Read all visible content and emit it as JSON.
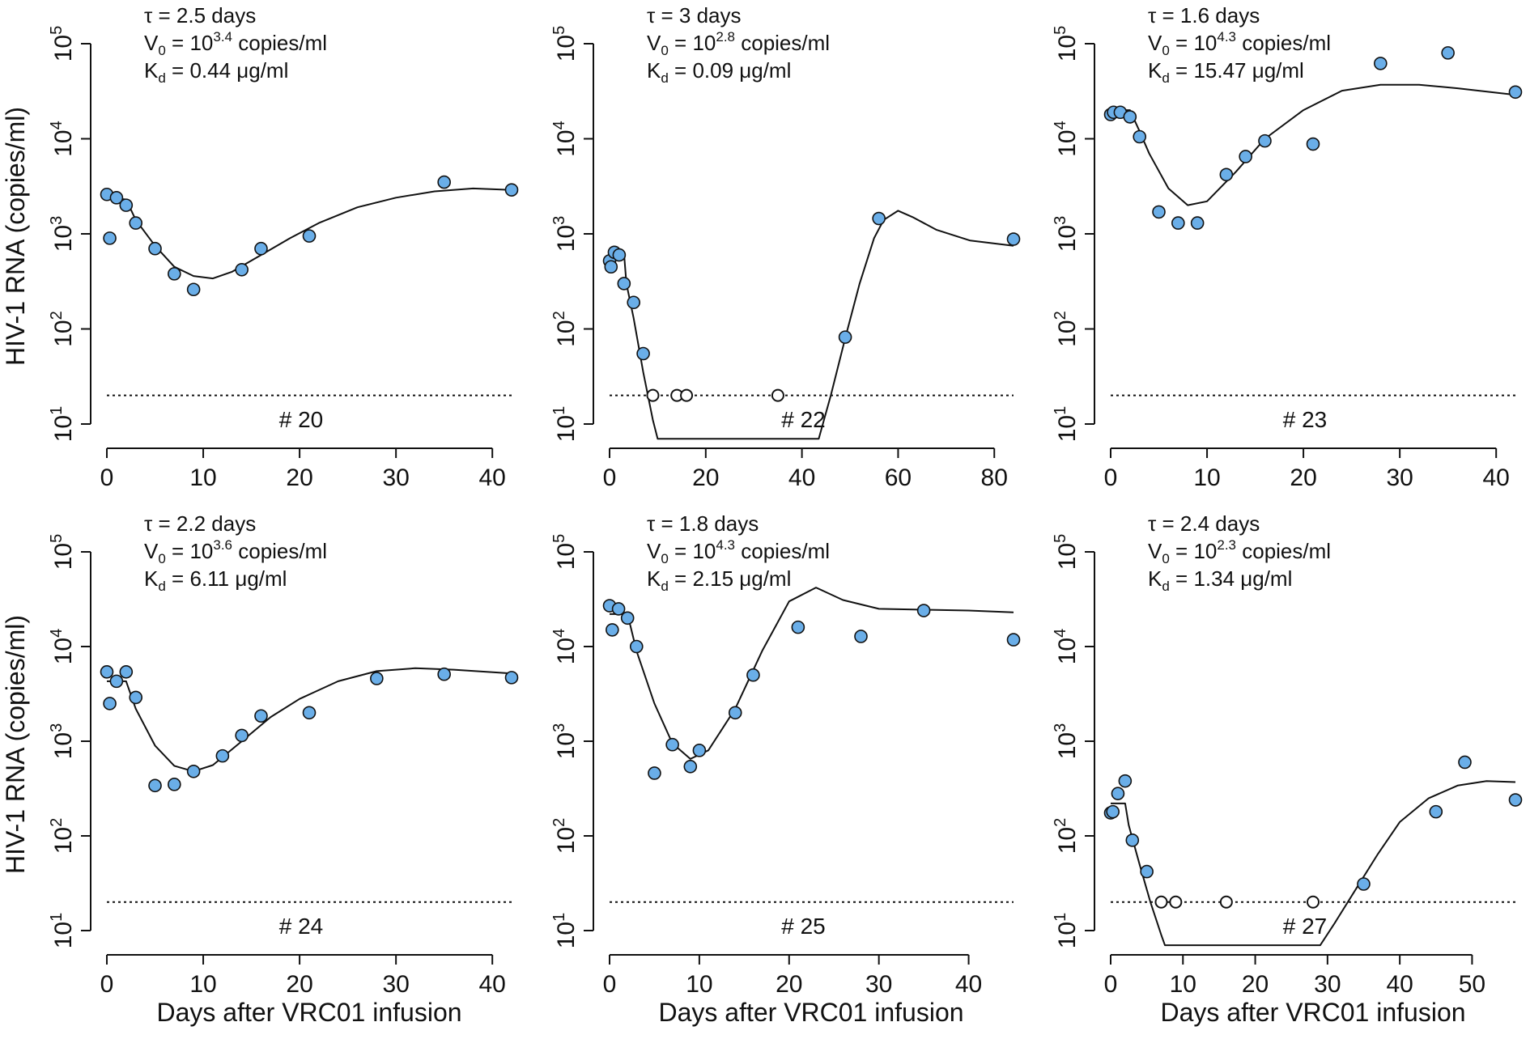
{
  "figure": {
    "y_axis_label": "HIV-1 RNA (copies/ml)",
    "x_axis_label": "Days after VRC01 infusion"
  },
  "style": {
    "point_fill": "#6aaee8",
    "point_stroke": "#111111",
    "open_point_fill": "#ffffff",
    "curve_color": "#111111"
  },
  "chart_data": [
    {
      "type": "scatter",
      "subject": "# 20",
      "params": {
        "tau": "τ = 2.5 days",
        "v0_prefix": "V",
        "v0_sub": "0",
        "v0_mid": " = 10",
        "v0_exp": "3.4",
        "v0_unit": " copies/ml",
        "kd_prefix": "K",
        "kd_sub": "d",
        "kd_rest": " = 0.44 μg/ml"
      },
      "xlim": [
        0,
        42
      ],
      "xticks": [
        0,
        10,
        20,
        30,
        40
      ],
      "ylog_range": [
        1,
        5
      ],
      "yticks": [
        "10^1",
        "10^2",
        "10^3",
        "10^4",
        "10^5"
      ],
      "detection_limit": 20,
      "points": [
        [
          0,
          2600
        ],
        [
          0.3,
          900
        ],
        [
          1,
          2400
        ],
        [
          2,
          2000
        ],
        [
          3,
          1300
        ],
        [
          5,
          700
        ],
        [
          7,
          380
        ],
        [
          9,
          260
        ],
        [
          14,
          420
        ],
        [
          16,
          700
        ],
        [
          21,
          950
        ],
        [
          35,
          3500
        ],
        [
          42,
          2900
        ]
      ],
      "censored_points": [],
      "curve": [
        [
          0,
          2400
        ],
        [
          2,
          2300
        ],
        [
          3,
          1400
        ],
        [
          5,
          750
        ],
        [
          7,
          450
        ],
        [
          9,
          360
        ],
        [
          11,
          340
        ],
        [
          13,
          400
        ],
        [
          16,
          600
        ],
        [
          19,
          900
        ],
        [
          22,
          1300
        ],
        [
          26,
          1900
        ],
        [
          30,
          2400
        ],
        [
          34,
          2800
        ],
        [
          38,
          3000
        ],
        [
          42,
          2900
        ]
      ]
    },
    {
      "type": "scatter",
      "subject": "# 22",
      "params": {
        "tau": "τ = 3 days",
        "v0_prefix": "V",
        "v0_sub": "0",
        "v0_mid": " = 10",
        "v0_exp": "2.8",
        "v0_unit": " copies/ml",
        "kd_prefix": "K",
        "kd_sub": "d",
        "kd_rest": " = 0.09 μg/ml"
      },
      "xlim": [
        0,
        84
      ],
      "xticks": [
        0,
        20,
        40,
        60,
        80
      ],
      "ylog_range": [
        1,
        5
      ],
      "yticks": [
        "10^1",
        "10^2",
        "10^3",
        "10^4",
        "10^5"
      ],
      "detection_limit": 20,
      "points": [
        [
          0,
          520
        ],
        [
          0.3,
          450
        ],
        [
          1,
          640
        ],
        [
          2,
          600
        ],
        [
          3,
          300
        ],
        [
          5,
          190
        ],
        [
          7,
          55
        ],
        [
          49,
          82
        ],
        [
          56,
          1450
        ],
        [
          84,
          880
        ]
      ],
      "censored_points": [
        [
          9,
          20
        ],
        [
          14,
          20
        ],
        [
          16,
          20
        ],
        [
          35,
          20
        ]
      ],
      "curve": [
        [
          0,
          630
        ],
        [
          3,
          630
        ],
        [
          3.5,
          300
        ],
        [
          5,
          130
        ],
        [
          7,
          35
        ],
        [
          9,
          11
        ],
        [
          10,
          7
        ],
        [
          43.5,
          7
        ],
        [
          46,
          20
        ],
        [
          49,
          80
        ],
        [
          52,
          300
        ],
        [
          55,
          900
        ],
        [
          57,
          1400
        ],
        [
          60,
          1750
        ],
        [
          63,
          1500
        ],
        [
          68,
          1100
        ],
        [
          75,
          850
        ],
        [
          84,
          750
        ]
      ]
    },
    {
      "type": "scatter",
      "subject": "# 23",
      "params": {
        "tau": "τ = 1.6 days",
        "v0_prefix": "V",
        "v0_sub": "0",
        "v0_mid": " = 10",
        "v0_exp": "4.3",
        "v0_unit": " copies/ml",
        "kd_prefix": "K",
        "kd_sub": "d",
        "kd_rest": " = 15.47 μg/ml"
      },
      "xlim": [
        0,
        42
      ],
      "xticks": [
        0,
        10,
        20,
        30,
        40
      ],
      "ylog_range": [
        1,
        5
      ],
      "yticks": [
        "10^1",
        "10^2",
        "10^3",
        "10^4",
        "10^5"
      ],
      "detection_limit": 20,
      "points": [
        [
          0,
          18000
        ],
        [
          0.3,
          19000
        ],
        [
          1,
          19000
        ],
        [
          2,
          17000
        ],
        [
          3,
          10500
        ],
        [
          5,
          1700
        ],
        [
          7,
          1300
        ],
        [
          9,
          1300
        ],
        [
          12,
          4200
        ],
        [
          14,
          6500
        ],
        [
          16,
          9500
        ],
        [
          21,
          8800
        ],
        [
          28,
          62000
        ],
        [
          35,
          80000
        ],
        [
          42,
          31000
        ]
      ],
      "censored_points": [],
      "curve": [
        [
          0,
          20000
        ],
        [
          2,
          20000
        ],
        [
          3,
          12000
        ],
        [
          4,
          7000
        ],
        [
          6,
          3000
        ],
        [
          8,
          2000
        ],
        [
          10,
          2200
        ],
        [
          13,
          4500
        ],
        [
          16,
          10000
        ],
        [
          20,
          20000
        ],
        [
          24,
          32000
        ],
        [
          28,
          37000
        ],
        [
          32,
          37000
        ],
        [
          36,
          34000
        ],
        [
          42,
          29000
        ]
      ]
    },
    {
      "type": "scatter",
      "subject": "# 24",
      "params": {
        "tau": "τ = 2.2 days",
        "v0_prefix": "V",
        "v0_sub": "0",
        "v0_mid": " = 10",
        "v0_exp": "3.6",
        "v0_unit": " copies/ml",
        "kd_prefix": "K",
        "kd_sub": "d",
        "kd_rest": " = 6.11 μg/ml"
      },
      "xlim": [
        0,
        42
      ],
      "xticks": [
        0,
        10,
        20,
        30,
        40
      ],
      "ylog_range": [
        1,
        5
      ],
      "yticks": [
        "10^1",
        "10^2",
        "10^3",
        "10^4",
        "10^5"
      ],
      "detection_limit": 20,
      "points": [
        [
          0,
          5400
        ],
        [
          0.3,
          2500
        ],
        [
          1,
          4300
        ],
        [
          2,
          5400
        ],
        [
          3,
          2900
        ],
        [
          5,
          340
        ],
        [
          7,
          350
        ],
        [
          9,
          480
        ],
        [
          12,
          700
        ],
        [
          14,
          1150
        ],
        [
          16,
          1850
        ],
        [
          21,
          2000
        ],
        [
          28,
          4600
        ],
        [
          35,
          5100
        ],
        [
          42,
          4700
        ]
      ],
      "censored_points": [],
      "curve": [
        [
          0,
          4300
        ],
        [
          2,
          4300
        ],
        [
          3,
          2200
        ],
        [
          5,
          900
        ],
        [
          7,
          550
        ],
        [
          9,
          480
        ],
        [
          11,
          560
        ],
        [
          14,
          1000
        ],
        [
          17,
          1800
        ],
        [
          20,
          2800
        ],
        [
          24,
          4300
        ],
        [
          28,
          5500
        ],
        [
          32,
          5900
        ],
        [
          36,
          5700
        ],
        [
          42,
          5200
        ]
      ]
    },
    {
      "type": "scatter",
      "subject": "# 25",
      "params": {
        "tau": "τ = 1.8 days",
        "v0_prefix": "V",
        "v0_sub": "0",
        "v0_mid": " = 10",
        "v0_exp": "4.3",
        "v0_unit": " copies/ml",
        "kd_prefix": "K",
        "kd_sub": "d",
        "kd_rest": " = 2.15 μg/ml"
      },
      "xlim": [
        0,
        45
      ],
      "xticks": [
        0,
        10,
        20,
        30,
        40
      ],
      "ylog_range": [
        1,
        5
      ],
      "yticks": [
        "10^1",
        "10^2",
        "10^3",
        "10^4",
        "10^5"
      ],
      "detection_limit": 20,
      "points": [
        [
          0,
          27000
        ],
        [
          0.3,
          15000
        ],
        [
          1,
          25000
        ],
        [
          2,
          20000
        ],
        [
          3,
          10000
        ],
        [
          5,
          460
        ],
        [
          7,
          920
        ],
        [
          9,
          540
        ],
        [
          10,
          800
        ],
        [
          14,
          2000
        ],
        [
          16,
          5000
        ],
        [
          21,
          16000
        ],
        [
          28,
          12800
        ],
        [
          35,
          24000
        ],
        [
          45,
          11800
        ]
      ],
      "censored_points": [],
      "curve": [
        [
          0,
          22000
        ],
        [
          2,
          22000
        ],
        [
          3,
          9000
        ],
        [
          5,
          2500
        ],
        [
          7,
          950
        ],
        [
          9,
          650
        ],
        [
          11,
          800
        ],
        [
          14,
          2200
        ],
        [
          17,
          9000
        ],
        [
          20,
          30000
        ],
        [
          23,
          42000
        ],
        [
          26,
          31000
        ],
        [
          30,
          25000
        ],
        [
          35,
          24500
        ],
        [
          40,
          24000
        ],
        [
          45,
          23000
        ]
      ]
    },
    {
      "type": "scatter",
      "subject": "# 27",
      "params": {
        "tau": "τ = 2.4 days",
        "v0_prefix": "V",
        "v0_sub": "0",
        "v0_mid": " = 10",
        "v0_exp": "2.3",
        "v0_unit": " copies/ml",
        "kd_prefix": "K",
        "kd_sub": "d",
        "kd_rest": " = 1.34 μg/ml"
      },
      "xlim": [
        0,
        56
      ],
      "xticks": [
        0,
        10,
        20,
        30,
        40,
        50
      ],
      "ylog_range": [
        1,
        5
      ],
      "yticks": [
        "10^1",
        "10^2",
        "10^3",
        "10^4",
        "10^5"
      ],
      "detection_limit": 20,
      "points": [
        [
          0,
          175
        ],
        [
          0.3,
          180
        ],
        [
          1,
          280
        ],
        [
          2,
          380
        ],
        [
          3,
          90
        ],
        [
          5,
          42
        ],
        [
          35,
          31
        ],
        [
          45,
          180
        ],
        [
          49,
          600
        ],
        [
          56,
          240
        ]
      ],
      "censored_points": [
        [
          7,
          20
        ],
        [
          9,
          20
        ],
        [
          16,
          20
        ],
        [
          28,
          20
        ]
      ],
      "curve": [
        [
          0,
          220
        ],
        [
          2,
          220
        ],
        [
          2.5,
          130
        ],
        [
          4,
          50
        ],
        [
          5.5,
          20
        ],
        [
          7,
          9
        ],
        [
          7.5,
          7
        ],
        [
          29,
          7
        ],
        [
          31,
          12
        ],
        [
          34,
          28
        ],
        [
          37,
          65
        ],
        [
          40,
          140
        ],
        [
          44,
          250
        ],
        [
          48,
          340
        ],
        [
          52,
          380
        ],
        [
          56,
          370
        ]
      ]
    }
  ]
}
